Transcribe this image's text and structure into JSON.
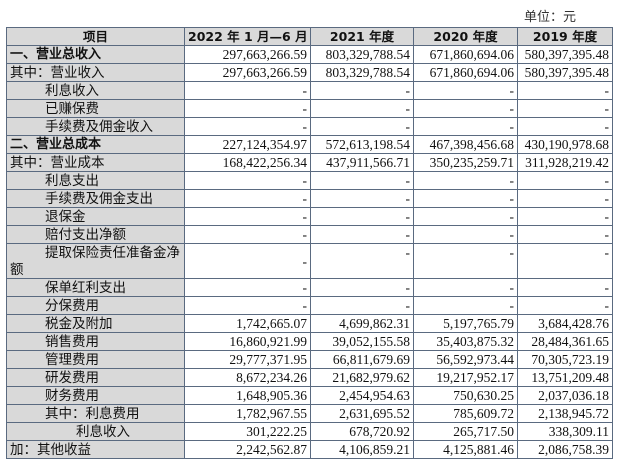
{
  "unit_label": "单位：元",
  "headers": [
    "项目",
    "2022 年 1 月—6 月",
    "2021 年度",
    "2020 年度",
    "2019 年度"
  ],
  "rows": [
    {
      "label": "一、营业总收入",
      "values": [
        "297,663,266.59",
        "803,329,788.54",
        "671,860,694.06",
        "580,397,395.48"
      ]
    },
    {
      "label": "其中：营业收入",
      "values": [
        "297,663,266.59",
        "803,329,788.54",
        "671,860,694.06",
        "580,397,395.48"
      ]
    },
    {
      "label": "利息收入",
      "values": [
        "-",
        "-",
        "-",
        "-"
      ]
    },
    {
      "label": "已赚保费",
      "values": [
        "-",
        "-",
        "-",
        "-"
      ]
    },
    {
      "label": "手续费及佣金收入",
      "values": [
        "-",
        "-",
        "-",
        "-"
      ]
    },
    {
      "label": "二、营业总成本",
      "values": [
        "227,124,354.97",
        "572,613,198.54",
        "467,398,456.68",
        "430,190,978.68"
      ]
    },
    {
      "label": "其中：营业成本",
      "values": [
        "168,422,256.34",
        "437,911,566.71",
        "350,235,259.71",
        "311,928,219.42"
      ]
    },
    {
      "label": "利息支出",
      "values": [
        "-",
        "-",
        "-",
        "-"
      ]
    },
    {
      "label": "手续费及佣金支出",
      "values": [
        "-",
        "-",
        "-",
        "-"
      ]
    },
    {
      "label": "退保金",
      "values": [
        "-",
        "-",
        "-",
        "-"
      ]
    },
    {
      "label": "赔付支出净额",
      "values": [
        "-",
        "-",
        "-",
        "-"
      ]
    },
    {
      "label": "提取保险责任准备金净额",
      "values": [
        "-",
        "-",
        "-",
        "-"
      ]
    },
    {
      "label": "保单红利支出",
      "values": [
        "-",
        "-",
        "-",
        "-"
      ]
    },
    {
      "label": "分保费用",
      "values": [
        "-",
        "-",
        "-",
        "-"
      ]
    },
    {
      "label": "税金及附加",
      "values": [
        "1,742,665.07",
        "4,699,862.31",
        "5,197,765.79",
        "3,684,428.76"
      ]
    },
    {
      "label": "销售费用",
      "values": [
        "16,860,921.99",
        "39,052,155.58",
        "35,403,875.32",
        "28,484,361.65"
      ]
    },
    {
      "label": "管理费用",
      "values": [
        "29,777,371.95",
        "66,811,679.69",
        "56,592,973.44",
        "70,305,723.19"
      ]
    },
    {
      "label": "研发费用",
      "values": [
        "8,672,234.26",
        "21,682,979.62",
        "19,217,952.17",
        "13,751,209.48"
      ]
    },
    {
      "label": "财务费用",
      "values": [
        "1,648,905.36",
        "2,454,954.63",
        "750,630.25",
        "2,037,036.18"
      ]
    },
    {
      "label": "其中：利息费用",
      "values": [
        "1,782,967.55",
        "2,631,695.52",
        "785,609.72",
        "2,138,945.72"
      ]
    },
    {
      "label": "利息收入",
      "values": [
        "301,222.25",
        "678,720.92",
        "265,717.50",
        "338,309.11"
      ]
    },
    {
      "label": "加：其他收益",
      "values": [
        "2,242,562.87",
        "4,106,859.21",
        "4,125,881.46",
        "2,086,758.39"
      ]
    }
  ]
}
